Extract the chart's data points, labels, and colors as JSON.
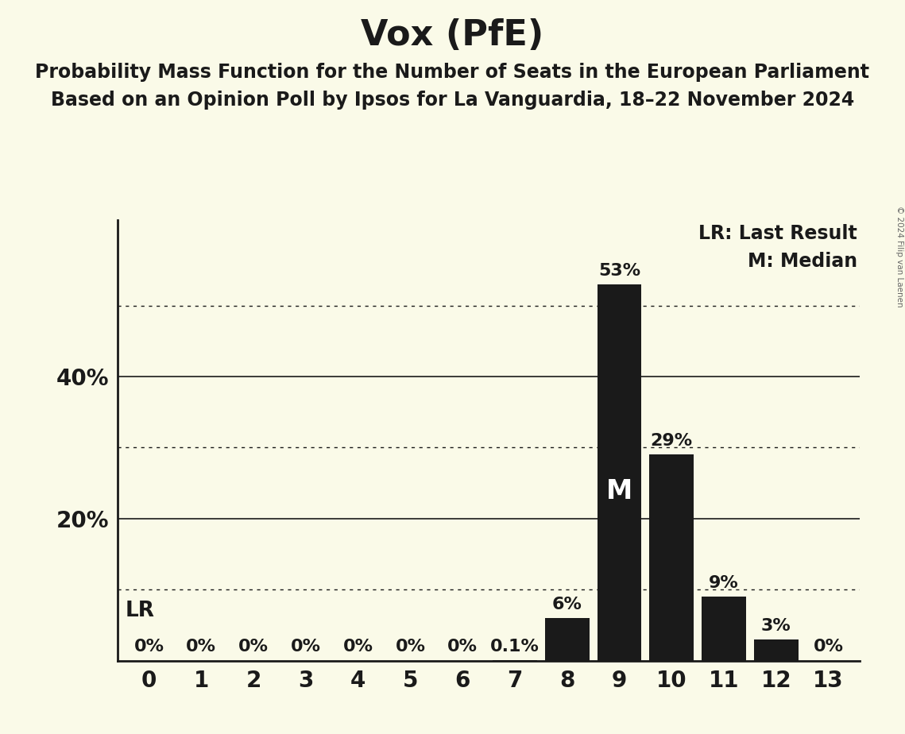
{
  "title": "Vox (PfE)",
  "subtitle1": "Probability Mass Function for the Number of Seats in the European Parliament",
  "subtitle2": "Based on an Opinion Poll by Ipsos for La Vanguardia, 18–22 November 2024",
  "copyright": "© 2024 Filip van Laenen",
  "categories": [
    0,
    1,
    2,
    3,
    4,
    5,
    6,
    7,
    8,
    9,
    10,
    11,
    12,
    13
  ],
  "values": [
    0.0,
    0.0,
    0.0,
    0.0,
    0.0,
    0.0,
    0.0,
    0.1,
    6.0,
    53.0,
    29.0,
    9.0,
    3.0,
    0.0
  ],
  "bar_labels": [
    "0%",
    "0%",
    "0%",
    "0%",
    "0%",
    "0%",
    "0%",
    "0.1%",
    "6%",
    "53%",
    "29%",
    "9%",
    "3%",
    "0%"
  ],
  "bar_color": "#1a1a1a",
  "background_color": "#fafae8",
  "median_seat": 9,
  "lr_label": "LR",
  "median_label": "M",
  "legend_lr": "LR: Last Result",
  "legend_m": "M: Median",
  "yticks_solid": [
    20,
    40
  ],
  "yticks_dotted": [
    10,
    30,
    50
  ],
  "ymax": 62,
  "title_fontsize": 32,
  "subtitle_fontsize": 17,
  "bar_label_fontsize": 16,
  "axis_label_fontsize": 20,
  "legend_fontsize": 17,
  "median_label_fontsize": 24,
  "lr_text_fontsize": 19
}
